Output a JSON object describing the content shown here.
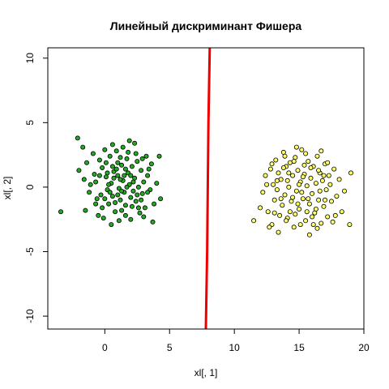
{
  "chart_data": {
    "type": "scatter",
    "title": "Линейный дискриминант Фишера",
    "xlabel": "xl[, 1]",
    "ylabel": "xl[, 2]",
    "xlim": [
      -4.4,
      20.0
    ],
    "ylim": [
      -11.0,
      10.8
    ],
    "x_ticks": [
      0,
      5,
      10,
      15,
      20
    ],
    "x_tick_labels": [
      "0",
      "5",
      "10",
      "15",
      "20"
    ],
    "y_ticks": [
      -10,
      -5,
      0,
      5,
      10
    ],
    "y_tick_labels": [
      "-10",
      "-5",
      "0",
      "5",
      "10"
    ],
    "grid": false,
    "series": [
      {
        "color": "#22aa22",
        "points": [
          [
            -3.4,
            -1.9
          ],
          [
            -2.1,
            3.8
          ],
          [
            -1.7,
            3.1
          ],
          [
            -2.0,
            1.3
          ],
          [
            -1.4,
            1.9
          ],
          [
            -1.6,
            0.6
          ],
          [
            -1.2,
            -0.4
          ],
          [
            -1.5,
            -1.8
          ],
          [
            -0.9,
            2.6
          ],
          [
            -0.8,
            1.0
          ],
          [
            -0.6,
            -0.9
          ],
          [
            -0.7,
            0.4
          ],
          [
            -0.4,
            2.1
          ],
          [
            -0.2,
            1.5
          ],
          [
            -0.3,
            -0.6
          ],
          [
            -0.5,
            -2.2
          ],
          [
            0.0,
            2.9
          ],
          [
            0.1,
            0.8
          ],
          [
            0.2,
            -0.2
          ],
          [
            0.3,
            -1.3
          ],
          [
            0.1,
            1.9
          ],
          [
            0.4,
            2.4
          ],
          [
            0.5,
            0.3
          ],
          [
            0.6,
            -0.7
          ],
          [
            0.7,
            1.2
          ],
          [
            0.8,
            -1.9
          ],
          [
            0.9,
            2.8
          ],
          [
            1.0,
            0.9
          ],
          [
            1.1,
            -0.1
          ],
          [
            1.2,
            -1.0
          ],
          [
            1.3,
            1.7
          ],
          [
            1.4,
            0.5
          ],
          [
            1.5,
            -0.4
          ],
          [
            1.6,
            -1.4
          ],
          [
            1.7,
            2.2
          ],
          [
            1.8,
            1.1
          ],
          [
            1.9,
            0.2
          ],
          [
            2.0,
            -0.8
          ],
          [
            2.1,
            1.6
          ],
          [
            2.2,
            -0.3
          ],
          [
            2.3,
            0.7
          ],
          [
            2.4,
            -1.1
          ],
          [
            2.5,
            2.0
          ],
          [
            2.6,
            0.0
          ],
          [
            2.7,
            -2.0
          ],
          [
            2.8,
            1.3
          ],
          [
            2.9,
            -0.5
          ],
          [
            3.0,
            0.4
          ],
          [
            3.1,
            -1.6
          ],
          [
            3.2,
            2.4
          ],
          [
            3.3,
            0.9
          ],
          [
            3.5,
            -0.2
          ],
          [
            3.6,
            1.8
          ],
          [
            3.8,
            -1.3
          ],
          [
            4.0,
            0.3
          ],
          [
            4.2,
            2.4
          ],
          [
            4.3,
            -0.9
          ],
          [
            0.6,
            1.6
          ],
          [
            1.2,
            2.3
          ],
          [
            1.8,
            2.7
          ],
          [
            0.3,
            0.2
          ],
          [
            1.0,
            -0.6
          ],
          [
            1.5,
            0.9
          ],
          [
            2.2,
            0.4
          ],
          [
            0.8,
            -1.2
          ],
          [
            1.6,
            -2.2
          ],
          [
            2.0,
            -2.5
          ],
          [
            1.1,
            -2.6
          ],
          [
            0.5,
            -2.9
          ],
          [
            -0.1,
            -2.4
          ],
          [
            2.6,
            -1.6
          ],
          [
            3.0,
            -2.3
          ],
          [
            3.7,
            -2.7
          ],
          [
            1.4,
            3.1
          ],
          [
            0.6,
            3.3
          ],
          [
            2.3,
            3.4
          ],
          [
            1.9,
            3.6
          ],
          [
            -0.7,
            -1.3
          ],
          [
            -1.1,
            0.2
          ],
          [
            0.0,
            -0.9
          ],
          [
            2.9,
            2.2
          ],
          [
            3.4,
            1.4
          ],
          [
            1.3,
            -1.8
          ],
          [
            2.5,
            -0.6
          ],
          [
            0.9,
            1.4
          ],
          [
            1.7,
            0.0
          ],
          [
            0.4,
            -0.4
          ],
          [
            -0.4,
            0.9
          ],
          [
            1.2,
            0.6
          ],
          [
            2.1,
            -1.5
          ],
          [
            3.3,
            -0.4
          ],
          [
            1.6,
            1.4
          ],
          [
            0.2,
            1.1
          ],
          [
            2.8,
            -1.0
          ],
          [
            1.0,
            1.9
          ],
          [
            -0.2,
            -1.6
          ],
          [
            2.4,
            2.6
          ],
          [
            1.3,
            -0.3
          ],
          [
            0.7,
            0.7
          ],
          [
            2.0,
            0.9
          ]
        ]
      },
      {
        "color": "#ffff66",
        "points": [
          [
            11.5,
            -2.6
          ],
          [
            12.0,
            -1.6
          ],
          [
            12.2,
            -0.4
          ],
          [
            12.4,
            0.9
          ],
          [
            12.6,
            -1.9
          ],
          [
            12.8,
            1.4
          ],
          [
            12.9,
            -2.9
          ],
          [
            13.0,
            0.2
          ],
          [
            13.1,
            -1.0
          ],
          [
            13.2,
            2.1
          ],
          [
            13.3,
            -0.2
          ],
          [
            13.4,
            1.1
          ],
          [
            13.5,
            -2.2
          ],
          [
            13.6,
            0.6
          ],
          [
            13.7,
            -1.4
          ],
          [
            13.8,
            2.7
          ],
          [
            13.9,
            -0.6
          ],
          [
            14.0,
            1.6
          ],
          [
            14.1,
            -2.4
          ],
          [
            14.2,
            0.0
          ],
          [
            14.3,
            1.9
          ],
          [
            14.4,
            -1.1
          ],
          [
            14.5,
            0.9
          ],
          [
            14.6,
            -3.1
          ],
          [
            14.7,
            2.3
          ],
          [
            14.8,
            -0.3
          ],
          [
            14.9,
            1.3
          ],
          [
            15.0,
            -1.7
          ],
          [
            15.1,
            0.4
          ],
          [
            15.2,
            2.9
          ],
          [
            15.3,
            -0.9
          ],
          [
            15.4,
            1.0
          ],
          [
            15.5,
            -2.6
          ],
          [
            15.6,
            0.1
          ],
          [
            15.7,
            2.0
          ],
          [
            15.8,
            -1.3
          ],
          [
            15.9,
            0.7
          ],
          [
            16.0,
            -0.5
          ],
          [
            16.1,
            1.6
          ],
          [
            16.2,
            -2.0
          ],
          [
            16.3,
            0.3
          ],
          [
            16.4,
            2.4
          ],
          [
            16.5,
            -1.0
          ],
          [
            16.6,
            1.1
          ],
          [
            16.7,
            -2.8
          ],
          [
            16.8,
            0.5
          ],
          [
            16.9,
            -1.5
          ],
          [
            17.0,
            1.8
          ],
          [
            17.1,
            -0.2
          ],
          [
            17.2,
            -2.3
          ],
          [
            17.3,
            0.9
          ],
          [
            17.5,
            -1.1
          ],
          [
            17.7,
            1.4
          ],
          [
            17.9,
            -0.7
          ],
          [
            18.1,
            0.6
          ],
          [
            18.3,
            -1.9
          ],
          [
            18.5,
            -0.3
          ],
          [
            18.9,
            -2.9
          ],
          [
            19.0,
            1.1
          ],
          [
            13.4,
            -3.5
          ],
          [
            14.0,
            -2.6
          ],
          [
            15.8,
            -3.7
          ],
          [
            16.4,
            -3.2
          ],
          [
            17.8,
            -2.2
          ],
          [
            14.8,
            3.1
          ],
          [
            15.5,
            2.6
          ],
          [
            16.7,
            2.8
          ],
          [
            13.9,
            2.4
          ],
          [
            12.7,
            -3.1
          ],
          [
            15.1,
            -2.9
          ],
          [
            16.0,
            -2.3
          ],
          [
            14.5,
            -0.8
          ],
          [
            15.3,
            0.8
          ],
          [
            14.2,
            1.1
          ],
          [
            16.6,
            -0.3
          ],
          [
            13.6,
            -0.9
          ],
          [
            15.9,
            1.5
          ],
          [
            17.4,
            0.2
          ],
          [
            12.9,
            1.8
          ],
          [
            14.9,
            -1.3
          ],
          [
            16.3,
            -1.7
          ],
          [
            13.3,
            0.5
          ],
          [
            15.0,
            0.2
          ],
          [
            14.6,
            2.0
          ],
          [
            17.0,
            -1.0
          ],
          [
            15.6,
            -1.9
          ],
          [
            16.9,
            0.9
          ],
          [
            13.1,
            -2.0
          ],
          [
            15.4,
            1.7
          ],
          [
            14.3,
            -1.9
          ],
          [
            16.5,
            1.3
          ],
          [
            17.6,
            -2.7
          ],
          [
            14.1,
            0.5
          ],
          [
            15.7,
            -0.9
          ],
          [
            13.8,
            1.5
          ],
          [
            16.1,
            -2.9
          ],
          [
            12.5,
            0.2
          ],
          [
            17.2,
            1.9
          ],
          [
            15.2,
            -0.4
          ],
          [
            14.7,
            -2.1
          ]
        ]
      }
    ],
    "line": {
      "color": "#ee0000",
      "points": [
        [
          7.8,
          -11.0
        ],
        [
          7.9,
          -5.0
        ],
        [
          7.95,
          0.0
        ],
        [
          8.0,
          5.0
        ],
        [
          8.1,
          10.8
        ]
      ]
    }
  }
}
